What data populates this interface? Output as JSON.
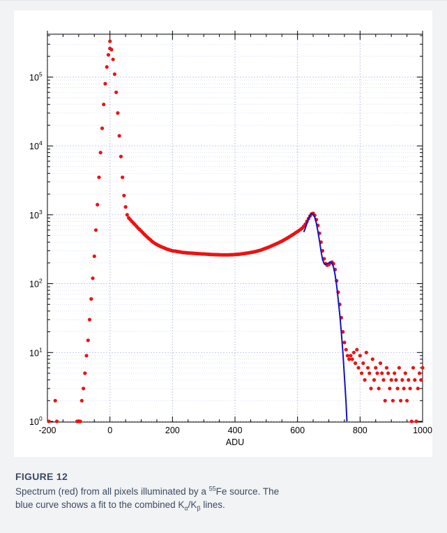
{
  "caption": {
    "label": "FIGURE 12",
    "line1_a": "Spectrum (red) from all pixels illuminated by a ",
    "isotope_mass": "55",
    "line1_b": "Fe source. The",
    "line2": "blue curve shows a fit to the combined K",
    "alpha": "α",
    "slash": "/K",
    "beta": "β",
    "line2_end": " lines."
  },
  "chart_data": {
    "type": "scatter",
    "xlabel": "ADU",
    "ylabel": "",
    "xlim": [
      -200,
      1000
    ],
    "ylim": [
      1,
      400000
    ],
    "yscale": "log",
    "grid": true,
    "xticks": [
      -200,
      0,
      200,
      400,
      600,
      800,
      1000
    ],
    "xtick_labels": [
      "-200",
      "0",
      "200",
      "400",
      "600",
      "800",
      "1000"
    ],
    "yticks": [
      1,
      10,
      100,
      1000,
      10000,
      100000
    ],
    "ytick_labels": [
      [
        "10",
        "0"
      ],
      [
        "10",
        "1"
      ],
      [
        "10",
        "2"
      ],
      [
        "10",
        "3"
      ],
      [
        "10",
        "4"
      ],
      [
        "10",
        "5"
      ]
    ],
    "colors": {
      "spectrum": "#ee1111",
      "fit": "#1111cc",
      "grid": "#bcc3ea",
      "axis": "#000000"
    },
    "series": [
      {
        "style": "points",
        "color": "#ee1111",
        "points": [
          [
            -195,
            1
          ],
          [
            -175,
            2
          ],
          [
            -170,
            1
          ],
          [
            -105,
            1
          ],
          [
            -100,
            1
          ],
          [
            -95,
            1
          ],
          [
            -90,
            2
          ],
          [
            -85,
            3
          ],
          [
            -80,
            5
          ],
          [
            -75,
            9
          ],
          [
            -70,
            15
          ],
          [
            -65,
            30
          ],
          [
            -60,
            60
          ],
          [
            -55,
            120
          ],
          [
            -50,
            250
          ],
          [
            -45,
            600
          ],
          [
            -40,
            1400
          ],
          [
            -35,
            3500
          ],
          [
            -30,
            8000
          ],
          [
            -25,
            18000
          ],
          [
            -20,
            40000
          ],
          [
            -15,
            80000
          ],
          [
            -10,
            140000
          ],
          [
            -5,
            210000
          ],
          [
            0,
            260000
          ],
          [
            0,
            330000
          ],
          [
            5,
            250000
          ],
          [
            10,
            180000
          ],
          [
            15,
            110000
          ],
          [
            20,
            60000
          ],
          [
            25,
            30000
          ],
          [
            30,
            14000
          ],
          [
            35,
            7000
          ],
          [
            40,
            3500
          ],
          [
            45,
            1900
          ],
          [
            50,
            1300
          ],
          [
            55,
            1000
          ],
          [
            60,
            900
          ],
          [
            65,
            850
          ],
          [
            70,
            800
          ],
          [
            75,
            760
          ],
          [
            80,
            720
          ],
          [
            85,
            680
          ],
          [
            90,
            640
          ],
          [
            95,
            610
          ],
          [
            100,
            580
          ],
          [
            105,
            550
          ],
          [
            110,
            520
          ],
          [
            115,
            495
          ],
          [
            120,
            470
          ],
          [
            125,
            450
          ],
          [
            130,
            430
          ],
          [
            135,
            410
          ],
          [
            140,
            395
          ],
          [
            145,
            380
          ],
          [
            150,
            370
          ],
          [
            155,
            360
          ],
          [
            160,
            350
          ],
          [
            165,
            342
          ],
          [
            170,
            335
          ],
          [
            175,
            328
          ],
          [
            180,
            320
          ],
          [
            185,
            315
          ],
          [
            190,
            310
          ],
          [
            195,
            305
          ],
          [
            200,
            300
          ],
          [
            205,
            298
          ],
          [
            210,
            296
          ],
          [
            215,
            293
          ],
          [
            220,
            290
          ],
          [
            225,
            288
          ],
          [
            230,
            285
          ],
          [
            235,
            283
          ],
          [
            240,
            282
          ],
          [
            245,
            280
          ],
          [
            250,
            279
          ],
          [
            255,
            278
          ],
          [
            260,
            277
          ],
          [
            265,
            276
          ],
          [
            270,
            275
          ],
          [
            275,
            274
          ],
          [
            280,
            273
          ],
          [
            285,
            272
          ],
          [
            290,
            271
          ],
          [
            295,
            270
          ],
          [
            300,
            270
          ],
          [
            305,
            269
          ],
          [
            310,
            268
          ],
          [
            315,
            267
          ],
          [
            320,
            266
          ],
          [
            325,
            265
          ],
          [
            330,
            265
          ],
          [
            335,
            264
          ],
          [
            340,
            264
          ],
          [
            345,
            263
          ],
          [
            350,
            263
          ],
          [
            355,
            262
          ],
          [
            360,
            262
          ],
          [
            365,
            262
          ],
          [
            370,
            262
          ],
          [
            375,
            262
          ],
          [
            380,
            262
          ],
          [
            385,
            263
          ],
          [
            390,
            263
          ],
          [
            395,
            264
          ],
          [
            400,
            265
          ],
          [
            405,
            266
          ],
          [
            410,
            267
          ],
          [
            415,
            268
          ],
          [
            420,
            270
          ],
          [
            425,
            272
          ],
          [
            430,
            274
          ],
          [
            435,
            276
          ],
          [
            440,
            278
          ],
          [
            445,
            280
          ],
          [
            450,
            283
          ],
          [
            455,
            286
          ],
          [
            460,
            289
          ],
          [
            465,
            292
          ],
          [
            470,
            296
          ],
          [
            475,
            300
          ],
          [
            480,
            305
          ],
          [
            485,
            310
          ],
          [
            490,
            316
          ],
          [
            495,
            322
          ],
          [
            500,
            328
          ],
          [
            505,
            335
          ],
          [
            510,
            342
          ],
          [
            515,
            350
          ],
          [
            520,
            358
          ],
          [
            525,
            366
          ],
          [
            530,
            375
          ],
          [
            535,
            384
          ],
          [
            540,
            394
          ],
          [
            545,
            404
          ],
          [
            550,
            415
          ],
          [
            555,
            427
          ],
          [
            560,
            440
          ],
          [
            565,
            453
          ],
          [
            570,
            467
          ],
          [
            575,
            482
          ],
          [
            580,
            498
          ],
          [
            585,
            515
          ],
          [
            590,
            533
          ],
          [
            595,
            552
          ],
          [
            600,
            572
          ],
          [
            605,
            593
          ],
          [
            610,
            615
          ],
          [
            615,
            640
          ],
          [
            620,
            680
          ],
          [
            625,
            730
          ],
          [
            630,
            800
          ],
          [
            635,
            880
          ],
          [
            640,
            960
          ],
          [
            645,
            1030
          ],
          [
            650,
            1050
          ],
          [
            655,
            980
          ],
          [
            660,
            850
          ],
          [
            665,
            700
          ],
          [
            670,
            540
          ],
          [
            675,
            400
          ],
          [
            680,
            300
          ],
          [
            685,
            230
          ],
          [
            690,
            195
          ],
          [
            695,
            185
          ],
          [
            700,
            190
          ],
          [
            705,
            200
          ],
          [
            710,
            205
          ],
          [
            715,
            195
          ],
          [
            720,
            160
          ],
          [
            725,
            110
          ],
          [
            730,
            75
          ],
          [
            735,
            50
          ],
          [
            740,
            32
          ],
          [
            745,
            20
          ],
          [
            750,
            14
          ],
          [
            755,
            11
          ],
          [
            760,
            9
          ],
          [
            765,
            8
          ],
          [
            770,
            9
          ],
          [
            775,
            8
          ],
          [
            780,
            10
          ],
          [
            785,
            7
          ],
          [
            790,
            11
          ],
          [
            795,
            6
          ],
          [
            800,
            9
          ],
          [
            805,
            5
          ],
          [
            810,
            7
          ],
          [
            815,
            4
          ],
          [
            820,
            10
          ],
          [
            825,
            6
          ],
          [
            830,
            5
          ],
          [
            835,
            3
          ],
          [
            840,
            8
          ],
          [
            845,
            4
          ],
          [
            850,
            6
          ],
          [
            855,
            5
          ],
          [
            860,
            3
          ],
          [
            865,
            7
          ],
          [
            870,
            5
          ],
          [
            875,
            4
          ],
          [
            880,
            2
          ],
          [
            885,
            6
          ],
          [
            890,
            5
          ],
          [
            895,
            3
          ],
          [
            900,
            4
          ],
          [
            905,
            2
          ],
          [
            910,
            5
          ],
          [
            915,
            4
          ],
          [
            920,
            3
          ],
          [
            925,
            6
          ],
          [
            930,
            2
          ],
          [
            935,
            4
          ],
          [
            940,
            3
          ],
          [
            945,
            5
          ],
          [
            950,
            2
          ],
          [
            955,
            4
          ],
          [
            960,
            3
          ],
          [
            965,
            1
          ],
          [
            970,
            6
          ],
          [
            975,
            4
          ],
          [
            980,
            1
          ],
          [
            985,
            3
          ],
          [
            990,
            5
          ],
          [
            995,
            4
          ],
          [
            1000,
            6
          ]
        ]
      },
      {
        "style": "line",
        "color": "#1111cc",
        "points": [
          [
            620,
            560
          ],
          [
            625,
            640
          ],
          [
            630,
            750
          ],
          [
            635,
            870
          ],
          [
            640,
            980
          ],
          [
            645,
            1040
          ],
          [
            650,
            1020
          ],
          [
            655,
            920
          ],
          [
            660,
            760
          ],
          [
            665,
            580
          ],
          [
            670,
            420
          ],
          [
            675,
            300
          ],
          [
            680,
            225
          ],
          [
            685,
            195
          ],
          [
            690,
            190
          ],
          [
            695,
            195
          ],
          [
            700,
            200
          ],
          [
            705,
            205
          ],
          [
            710,
            200
          ],
          [
            715,
            175
          ],
          [
            720,
            135
          ],
          [
            725,
            95
          ],
          [
            730,
            60
          ],
          [
            735,
            36
          ],
          [
            740,
            20
          ],
          [
            745,
            10
          ],
          [
            750,
            4.5
          ],
          [
            755,
            1.9
          ],
          [
            758,
            1.0
          ]
        ]
      }
    ]
  }
}
